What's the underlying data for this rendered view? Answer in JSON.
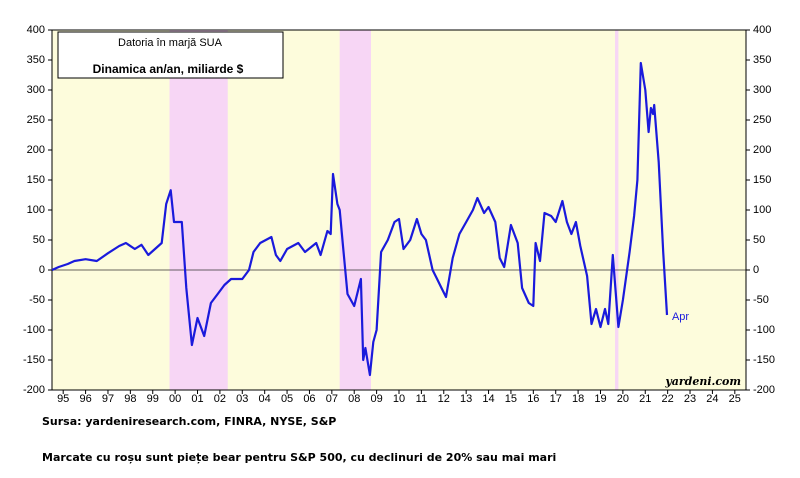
{
  "chart_data": {
    "type": "line",
    "title": "Datoria în marjă SUA",
    "subtitle": "Dinamica an/an, miliarde $",
    "annotation": "Apr",
    "watermark": "yardeni.com",
    "source": "Sursa: yardeniresearch.com, FINRA, NYSE, S&P",
    "note": "Marcate cu roșu sunt piețe bear pentru S&P 500, cu declinuri de 20% sau mai mari",
    "color": "#1a1adc",
    "background": "#fdfcdc",
    "bear_market_color": "#f7d6f5",
    "bear_markets": [
      [
        2000.25,
        2002.85
      ],
      [
        2007.85,
        2009.25
      ],
      [
        2020.15,
        2020.3
      ]
    ],
    "x": [
      1995.0,
      1995.3,
      1995.7,
      1996.0,
      1996.5,
      1997.0,
      1997.5,
      1998.0,
      1998.3,
      1998.7,
      1999.0,
      1999.3,
      1999.6,
      1999.9,
      2000.1,
      2000.3,
      2000.45,
      2000.8,
      2001.0,
      2001.25,
      2001.5,
      2001.8,
      2002.1,
      2002.4,
      2002.7,
      2003.0,
      2003.5,
      2003.8,
      2004.0,
      2004.3,
      2004.8,
      2005.0,
      2005.2,
      2005.5,
      2006.0,
      2006.3,
      2006.8,
      2007.0,
      2007.3,
      2007.45,
      2007.55,
      2007.75,
      2007.85,
      2008.0,
      2008.2,
      2008.5,
      2008.8,
      2008.9,
      2009.0,
      2009.2,
      2009.35,
      2009.5,
      2009.7,
      2010.0,
      2010.3,
      2010.5,
      2010.7,
      2011.0,
      2011.3,
      2011.5,
      2011.7,
      2012.0,
      2012.2,
      2012.4,
      2012.6,
      2012.9,
      2013.2,
      2013.5,
      2013.8,
      2014.0,
      2014.3,
      2014.5,
      2014.8,
      2015.0,
      2015.2,
      2015.5,
      2015.8,
      2016.0,
      2016.3,
      2016.5,
      2016.6,
      2016.8,
      2017.0,
      2017.3,
      2017.5,
      2017.8,
      2018.0,
      2018.2,
      2018.4,
      2018.6,
      2018.9,
      2019.1,
      2019.3,
      2019.5,
      2019.7,
      2019.85,
      2020.05,
      2020.3,
      2020.5,
      2020.8,
      2021.0,
      2021.15,
      2021.3,
      2021.5,
      2021.65,
      2021.75,
      2021.85,
      2021.9,
      2022.1,
      2022.3,
      2022.47
    ],
    "values": [
      0,
      5,
      10,
      15,
      18,
      15,
      28,
      40,
      45,
      35,
      42,
      25,
      35,
      45,
      110,
      133,
      80,
      80,
      -30,
      -125,
      -80,
      -110,
      -55,
      -40,
      -25,
      -15,
      -15,
      0,
      30,
      45,
      55,
      25,
      15,
      35,
      45,
      30,
      45,
      25,
      65,
      60,
      160,
      110,
      100,
      40,
      -40,
      -60,
      -15,
      -150,
      -130,
      -175,
      -120,
      -100,
      30,
      50,
      80,
      85,
      35,
      50,
      85,
      60,
      50,
      0,
      -15,
      -30,
      -45,
      20,
      60,
      80,
      100,
      120,
      95,
      105,
      80,
      20,
      5,
      75,
      45,
      -30,
      -55,
      -60,
      45,
      15,
      95,
      90,
      80,
      115,
      80,
      60,
      80,
      40,
      -10,
      -90,
      -65,
      -95,
      -65,
      -90,
      25,
      -95,
      -50,
      30,
      90,
      150,
      345,
      300,
      230,
      270,
      260,
      275,
      180,
      30,
      -75
    ],
    "xlim": [
      1995,
      2026
    ],
    "xticks": [
      {
        "value": 1995.5,
        "label": "95"
      },
      {
        "value": 1996.5,
        "label": "96"
      },
      {
        "value": 1997.5,
        "label": "97"
      },
      {
        "value": 1998.5,
        "label": "98"
      },
      {
        "value": 1999.5,
        "label": "99"
      },
      {
        "value": 2000.5,
        "label": "00"
      },
      {
        "value": 2001.5,
        "label": "01"
      },
      {
        "value": 2002.5,
        "label": "02"
      },
      {
        "value": 2003.5,
        "label": "03"
      },
      {
        "value": 2004.5,
        "label": "04"
      },
      {
        "value": 2005.5,
        "label": "05"
      },
      {
        "value": 2006.5,
        "label": "06"
      },
      {
        "value": 2007.5,
        "label": "07"
      },
      {
        "value": 2008.5,
        "label": "08"
      },
      {
        "value": 2009.5,
        "label": "09"
      },
      {
        "value": 2010.5,
        "label": "10"
      },
      {
        "value": 2011.5,
        "label": "11"
      },
      {
        "value": 2012.5,
        "label": "12"
      },
      {
        "value": 2013.5,
        "label": "13"
      },
      {
        "value": 2014.5,
        "label": "14"
      },
      {
        "value": 2015.5,
        "label": "15"
      },
      {
        "value": 2016.5,
        "label": "16"
      },
      {
        "value": 2017.5,
        "label": "17"
      },
      {
        "value": 2018.5,
        "label": "18"
      },
      {
        "value": 2019.5,
        "label": "19"
      },
      {
        "value": 2020.5,
        "label": "20"
      },
      {
        "value": 2021.5,
        "label": "21"
      },
      {
        "value": 2022.5,
        "label": "22"
      },
      {
        "value": 2023.5,
        "label": "23"
      },
      {
        "value": 2024.5,
        "label": "24"
      },
      {
        "value": 2025.5,
        "label": "25"
      }
    ],
    "ylim": [
      -200,
      400
    ],
    "yticks": [
      -200,
      -150,
      -100,
      -50,
      0,
      50,
      100,
      150,
      200,
      250,
      300,
      350,
      400
    ],
    "y2lim": [
      -200,
      400
    ],
    "y2ticks": [
      -200,
      -150,
      -100,
      -50,
      0,
      50,
      100,
      150,
      200,
      250,
      300,
      350,
      400
    ]
  }
}
